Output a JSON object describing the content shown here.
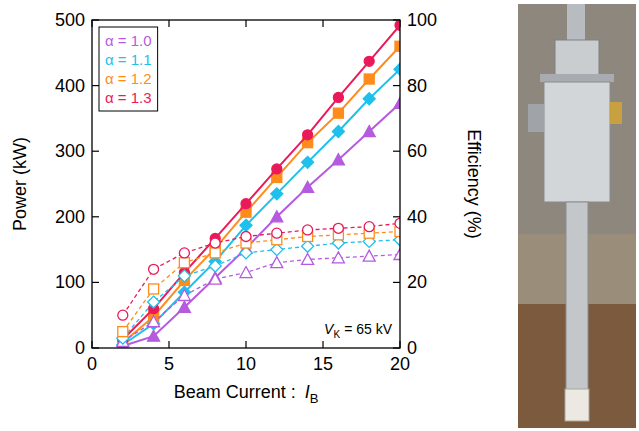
{
  "chart_data": {
    "type": "line",
    "xlabel": "Beam Current : ",
    "xlabel_symbol": "I",
    "xlabel_subscript": "B",
    "ylabel": "Power (kW)",
    "y2label": "Efficiency (%)",
    "annotation_symbol": "V",
    "annotation_subscript": "K",
    "annotation": "= 65 kV",
    "x": [
      2,
      4,
      6,
      8,
      10,
      12,
      14,
      16,
      18,
      20
    ],
    "xlim": [
      0,
      20
    ],
    "xticks": [
      0,
      5,
      10,
      15,
      20
    ],
    "ylim": [
      0,
      500
    ],
    "yticks": [
      0,
      100,
      200,
      300,
      400,
      500
    ],
    "y2lim": [
      0,
      100
    ],
    "y2ticks": [
      0,
      20,
      40,
      60,
      80,
      100
    ],
    "grid": false,
    "legend": "top-left",
    "series": [
      {
        "name": "α = 1.0",
        "color": "#b65ae0",
        "marker": "triangle",
        "line_style": "solid",
        "values": [
          3,
          18,
          62,
          107,
          152,
          200,
          245,
          287,
          330,
          373
        ]
      },
      {
        "name": "α = 1.1",
        "color": "#1ec0ec",
        "marker": "diamond",
        "line_style": "solid",
        "values": [
          5,
          37,
          85,
          132,
          187,
          235,
          283,
          330,
          380,
          425
        ]
      },
      {
        "name": "α = 1.2",
        "color": "#ff8c1a",
        "marker": "square",
        "line_style": "solid",
        "values": [
          8,
          48,
          103,
          152,
          207,
          260,
          313,
          358,
          410,
          460
        ]
      },
      {
        "name": "α = 1.3",
        "color": "#ea1a5a",
        "marker": "circle",
        "line_style": "solid",
        "values": [
          13,
          60,
          115,
          167,
          220,
          273,
          325,
          382,
          437,
          492
        ]
      },
      {
        "name": "α = 1.0",
        "color": "#b65ae0",
        "marker": "triangle-open",
        "line_style": "dashed",
        "axis": "y2",
        "values": [
          2,
          8,
          16,
          21,
          23,
          26,
          27,
          27.5,
          28,
          28.5
        ]
      },
      {
        "name": "α = 1.1",
        "color": "#1ec0ec",
        "marker": "diamond-open",
        "line_style": "dashed",
        "axis": "y2",
        "values": [
          3,
          14,
          22,
          25,
          29,
          30,
          31,
          32,
          32.5,
          33
        ]
      },
      {
        "name": "α = 1.2",
        "color": "#ff8c1a",
        "marker": "square-open",
        "line_style": "dashed",
        "axis": "y2",
        "values": [
          5,
          18,
          26,
          29,
          32,
          33,
          34,
          34.5,
          35,
          35.5
        ]
      },
      {
        "name": "α = 1.3",
        "color": "#ea1a5a",
        "marker": "circle-open",
        "line_style": "dashed",
        "axis": "y2",
        "values": [
          10,
          24,
          29,
          32,
          34,
          35,
          36,
          36.5,
          37,
          38
        ]
      }
    ]
  }
}
